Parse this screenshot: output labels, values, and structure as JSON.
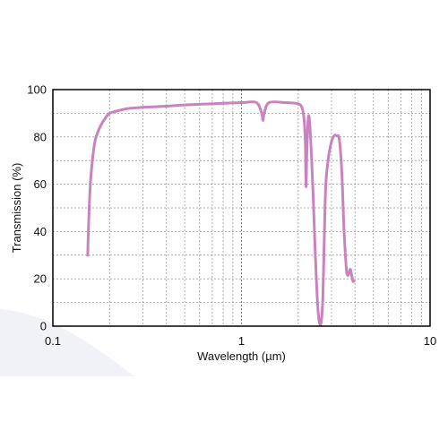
{
  "chart_data": {
    "type": "line",
    "xlabel": "Wavelength (µm)",
    "ylabel": "Transmission (%)",
    "x_scale": "log",
    "xlim": [
      0.1,
      10
    ],
    "ylim": [
      0,
      100
    ],
    "x_ticks": [
      {
        "value": 0.1,
        "label": "0.1"
      },
      {
        "value": 1,
        "label": "1"
      },
      {
        "value": 10,
        "label": "10"
      }
    ],
    "y_ticks": [
      {
        "value": 0,
        "label": "0"
      },
      {
        "value": 20,
        "label": "20"
      },
      {
        "value": 40,
        "label": "40"
      },
      {
        "value": 60,
        "label": "60"
      },
      {
        "value": 80,
        "label": "80"
      },
      {
        "value": 100,
        "label": "100"
      }
    ],
    "grid": true,
    "line_color": "#c982bd",
    "series": [
      {
        "x": [
          0.153,
          0.155,
          0.158,
          0.162,
          0.167,
          0.173,
          0.18,
          0.19,
          0.2,
          0.22,
          0.25,
          0.3,
          0.4,
          0.5,
          0.7,
          1.0,
          1.2,
          1.28,
          1.3,
          1.32,
          1.4,
          1.7,
          2.0,
          2.1,
          2.15,
          2.18,
          2.2,
          2.22,
          2.26,
          2.3,
          2.35,
          2.4,
          2.45,
          2.5,
          2.55,
          2.6,
          2.65,
          2.7,
          2.75,
          2.8,
          2.9,
          3.0,
          3.1,
          3.2,
          3.3,
          3.4,
          3.5,
          3.6,
          3.65,
          3.7,
          3.78,
          3.85,
          3.9,
          3.95
        ],
        "y": [
          30,
          45,
          60,
          70,
          78,
          82,
          85,
          88,
          90,
          91,
          92,
          92.5,
          93,
          93.5,
          94,
          94.5,
          94.5,
          90,
          87,
          90,
          94.5,
          94.5,
          94,
          92,
          87,
          78,
          59,
          73,
          88,
          86,
          72,
          55,
          35,
          18,
          6,
          1,
          2,
          12,
          38,
          60,
          72,
          78,
          80.5,
          80.5,
          79,
          66,
          40,
          24,
          21.5,
          22,
          24,
          21,
          19,
          19
        ]
      }
    ]
  }
}
